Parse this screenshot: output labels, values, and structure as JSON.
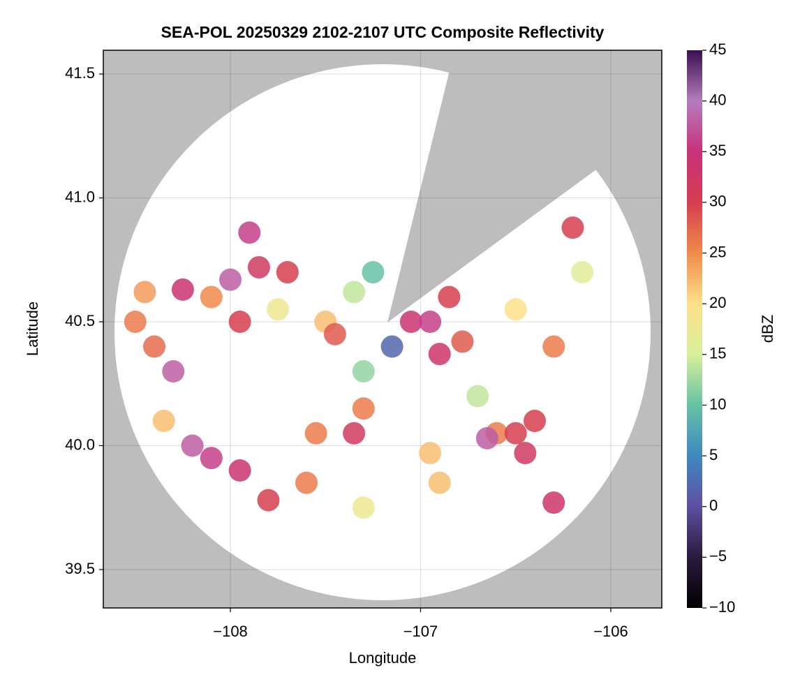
{
  "chart_data": {
    "type": "radar",
    "title": "SEA-POL 20250329 2102-2107 UTC Composite Reflectivity",
    "xlabel": "Longitude",
    "ylabel": "Latitude",
    "colorbar_label": "dBZ",
    "xlim": [
      -108.668,
      -105.732
    ],
    "ylim": [
      39.345,
      41.596
    ],
    "xticks": [
      {
        "value": -108,
        "label": "−108"
      },
      {
        "value": -107,
        "label": "−107"
      },
      {
        "value": -106,
        "label": "−106"
      }
    ],
    "yticks": [
      39.5,
      {
        "value": 40.0,
        "label": "40.0"
      },
      40.5,
      {
        "value": 41.0,
        "label": "41.0"
      },
      41.5
    ],
    "grid": true,
    "background_color": "#bdbdbd",
    "clim": [
      -10,
      45
    ],
    "cticks": [
      {
        "value": -10,
        "label": "−10"
      },
      {
        "value": -5,
        "label": "−5"
      },
      0,
      5,
      10,
      15,
      20,
      25,
      30,
      35,
      40,
      45
    ],
    "colormap": [
      "#000000",
      "#2a1a3e",
      "#5e4fa2",
      "#3f88c0",
      "#66c2a5",
      "#d8ef9b",
      "#fee08b",
      "#f08a4b",
      "#d53e4f",
      "#c8317a",
      "#b47cbf",
      "#3b0f4f"
    ],
    "x": [
      -108.5,
      -108.45,
      -108.4,
      -108.3,
      -108.25,
      -108.1,
      -108.0,
      -107.95,
      -107.85,
      -107.7,
      -107.9,
      -107.75,
      -107.5,
      -107.45,
      -107.35,
      -107.25,
      -107.3,
      -107.3,
      -107.35,
      -107.55,
      -107.05,
      -106.95,
      -106.85,
      -106.78,
      -106.9,
      -107.15,
      -106.7,
      -106.6,
      -106.65,
      -106.95,
      -106.5,
      -106.45,
      -106.4,
      -106.3,
      -106.5,
      -106.2,
      -108.2,
      -108.1,
      -107.95,
      -107.8,
      -107.6,
      -107.3,
      -106.3,
      -106.9,
      -108.35,
      -106.15
    ],
    "y": [
      40.5,
      40.62,
      40.4,
      40.3,
      40.63,
      40.6,
      40.67,
      40.5,
      40.72,
      40.7,
      40.86,
      40.55,
      40.5,
      40.45,
      40.62,
      40.7,
      40.3,
      40.15,
      40.05,
      40.05,
      40.5,
      40.5,
      40.6,
      40.42,
      40.37,
      40.4,
      40.2,
      40.05,
      40.03,
      39.97,
      40.05,
      39.97,
      40.1,
      40.4,
      40.55,
      40.88,
      40.0,
      39.95,
      39.9,
      39.78,
      39.85,
      39.75,
      39.77,
      39.85,
      40.1,
      40.7
    ],
    "values": [
      26,
      24,
      27,
      38,
      34,
      25,
      38,
      30,
      32,
      30,
      36,
      18,
      22,
      28,
      14,
      10,
      12,
      26,
      32,
      26,
      34,
      36,
      30,
      28,
      33,
      2,
      14,
      26,
      38,
      22,
      30,
      32,
      30,
      26,
      20,
      30,
      38,
      36,
      34,
      30,
      26,
      18,
      33,
      22,
      22,
      16
    ]
  }
}
